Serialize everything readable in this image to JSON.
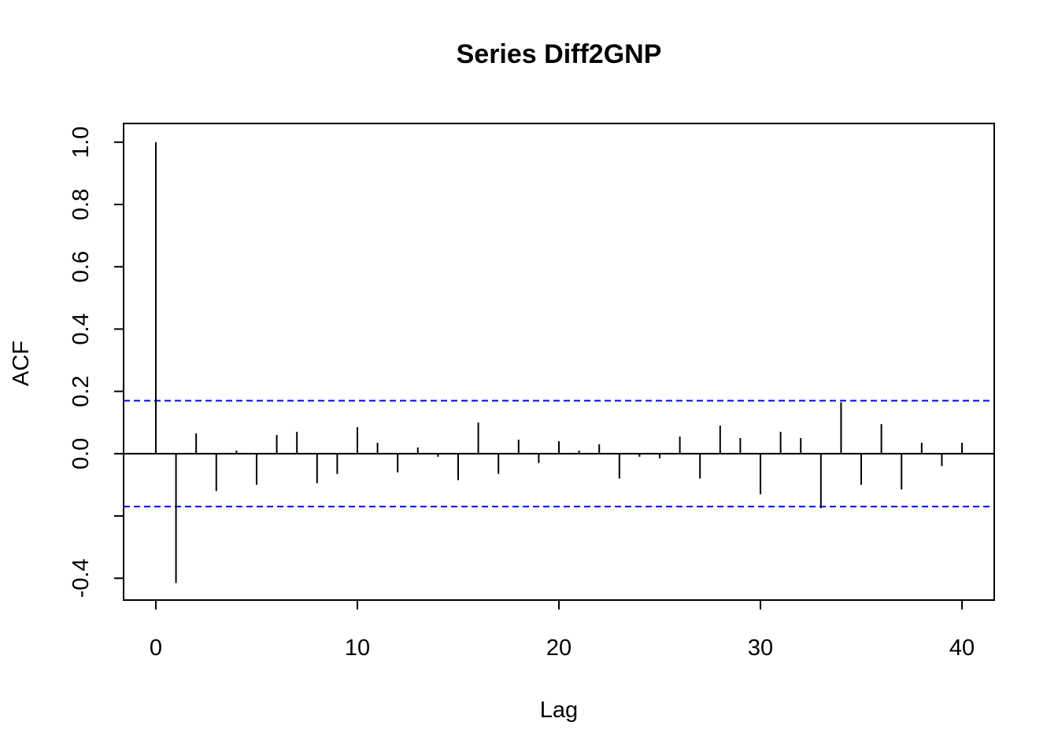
{
  "chart_data": {
    "type": "bar",
    "title": "Series  Diff2GNP",
    "xlabel": "Lag",
    "ylabel": "ACF",
    "xlim": [
      -1.6,
      41.6
    ],
    "ylim": [
      -0.47,
      1.06
    ],
    "x_ticks": [
      0,
      10,
      20,
      30,
      40
    ],
    "x_tick_labels": [
      "0",
      "10",
      "20",
      "30",
      "40"
    ],
    "y_ticks": [
      -0.4,
      -0.2,
      0.0,
      0.2,
      0.4,
      0.6,
      0.8,
      1.0
    ],
    "y_tick_labels": [
      "-0.4",
      "",
      "0.0",
      "0.2",
      "0.4",
      "0.6",
      "0.8",
      "1.0"
    ],
    "zero_line": 0,
    "confidence_bounds": [
      0.17,
      -0.17
    ],
    "confidence_color": "#0000ff",
    "series": [
      {
        "x": [
          0,
          1,
          2,
          3,
          4,
          5,
          6,
          7,
          8,
          9,
          10,
          11,
          12,
          13,
          14,
          15,
          16,
          17,
          18,
          19,
          20,
          21,
          22,
          23,
          24,
          25,
          26,
          27,
          28,
          29,
          30,
          31,
          32,
          33,
          34,
          35,
          36,
          37,
          38,
          39,
          40
        ],
        "values": [
          1.0,
          -0.415,
          0.065,
          -0.12,
          0.01,
          -0.1,
          0.06,
          0.07,
          -0.095,
          -0.065,
          0.085,
          0.035,
          -0.06,
          0.02,
          -0.01,
          -0.085,
          0.1,
          -0.065,
          0.045,
          -0.03,
          0.04,
          0.01,
          0.03,
          -0.08,
          -0.01,
          -0.015,
          0.055,
          -0.08,
          0.09,
          0.05,
          -0.13,
          0.07,
          0.05,
          -0.175,
          0.165,
          -0.1,
          0.095,
          -0.115,
          0.035,
          -0.04,
          0.035
        ]
      }
    ]
  }
}
